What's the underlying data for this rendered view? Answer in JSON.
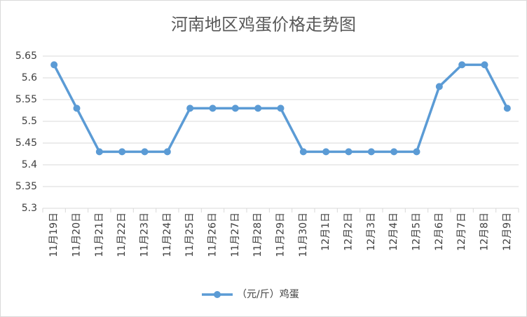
{
  "chart_data": {
    "type": "line",
    "title": "河南地区鸡蛋价格走势图",
    "categories": [
      "11月19日",
      "11月20日",
      "11月21日",
      "11月22日",
      "11月23日",
      "11月24日",
      "11月25日",
      "11月26日",
      "11月27日",
      "11月28日",
      "11月29日",
      "11月30日",
      "12月1日",
      "12月2日",
      "12月3日",
      "12月4日",
      "12月5日",
      "12月6日",
      "12月7日",
      "12月8日",
      "12月9日"
    ],
    "series": [
      {
        "name": "（元/斤）鸡蛋",
        "color": "#5b9bd5",
        "values": [
          5.63,
          5.53,
          5.43,
          5.43,
          5.43,
          5.43,
          5.53,
          5.53,
          5.53,
          5.53,
          5.53,
          5.43,
          5.43,
          5.43,
          5.43,
          5.43,
          5.43,
          5.58,
          5.63,
          5.63,
          5.53
        ]
      }
    ],
    "ylim": [
      5.3,
      5.65
    ],
    "yticks": [
      5.3,
      5.35,
      5.4,
      5.45,
      5.5,
      5.55,
      5.6,
      5.65
    ],
    "grid": true,
    "legend": "bottom"
  }
}
